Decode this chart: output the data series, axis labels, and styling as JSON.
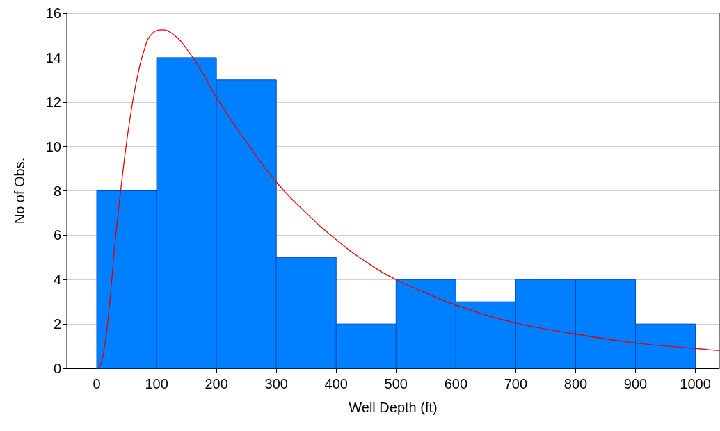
{
  "chart_data": {
    "type": "histogram",
    "xlabel": "Well Depth (ft)",
    "ylabel": "No of Obs.",
    "bins": [
      0,
      100,
      200,
      300,
      400,
      500,
      600,
      700,
      800,
      900,
      1000
    ],
    "values": [
      8,
      14,
      13,
      5,
      2,
      4,
      3,
      4,
      4,
      2
    ],
    "color": "#0080ff",
    "xlim": [
      -50,
      1040
    ],
    "xticks": [
      0,
      100,
      200,
      300,
      400,
      500,
      600,
      700,
      800,
      900,
      1000
    ],
    "ylim": [
      0,
      16
    ],
    "yticks": [
      0,
      2,
      4,
      6,
      8,
      10,
      12,
      14,
      16
    ],
    "grid": "y",
    "legend": false,
    "series": [
      {
        "type": "line",
        "color": "#e00000",
        "marker": "none",
        "x": [
          3,
          10,
          20,
          30,
          40,
          50,
          60,
          70,
          80,
          90,
          108,
          130,
          150,
          175,
          200,
          250,
          300,
          350,
          400,
          450,
          500,
          550,
          600,
          700,
          800,
          900,
          1000,
          1040
        ],
        "values": [
          0,
          0.5,
          2.5,
          5.5,
          8,
          10.2,
          12,
          13.4,
          14.4,
          15,
          15.25,
          15,
          14.4,
          13.4,
          12.2,
          10.2,
          8.4,
          7,
          5.8,
          4.8,
          4,
          3.4,
          2.85,
          2.05,
          1.55,
          1.15,
          0.9,
          0.8
        ]
      }
    ]
  }
}
